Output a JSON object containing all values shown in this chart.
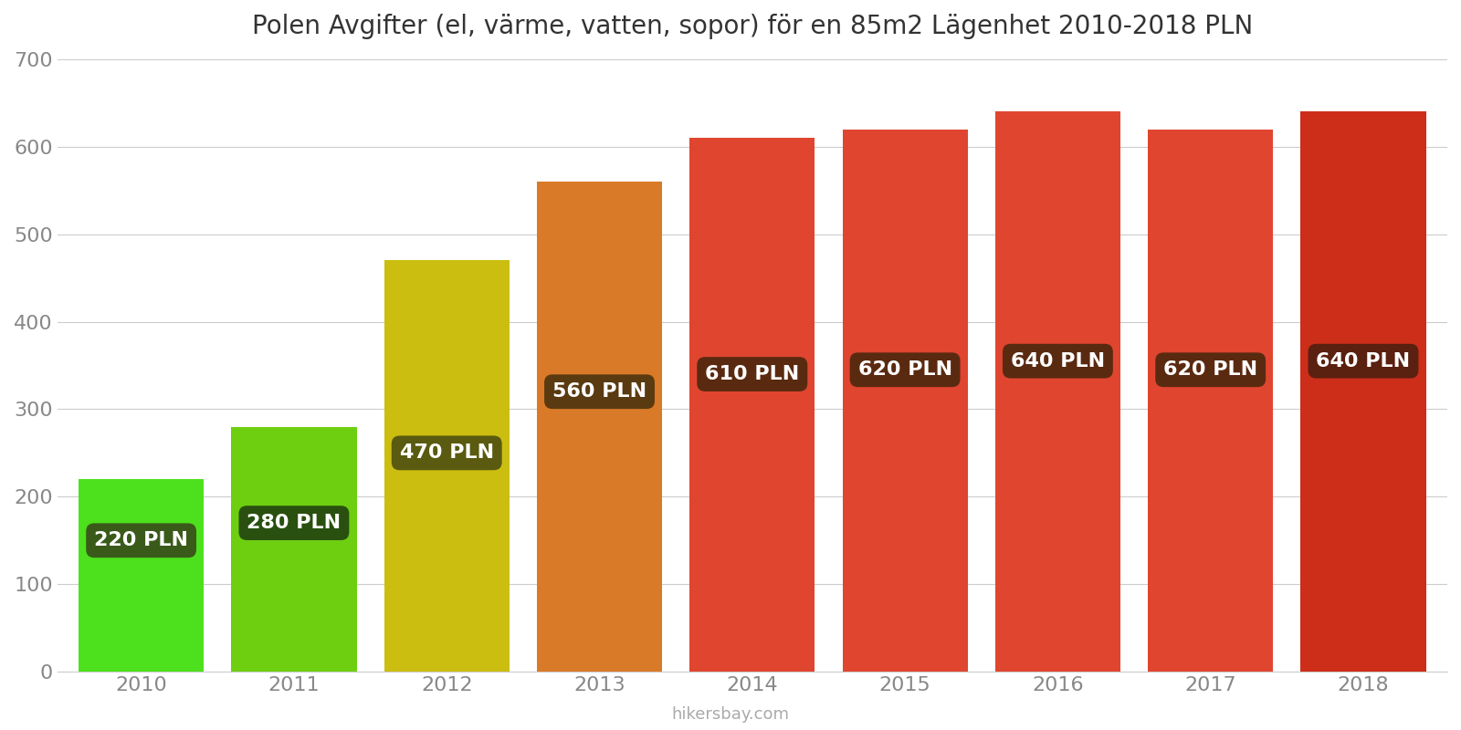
{
  "title": "Polen Avgifter (el, värme, vatten, sopor) för en 85m2 Lägenhet 2010-2018 PLN",
  "years": [
    2010,
    2011,
    2012,
    2013,
    2014,
    2015,
    2016,
    2017,
    2018
  ],
  "values": [
    220,
    280,
    470,
    560,
    610,
    620,
    640,
    620,
    640
  ],
  "bar_colors": [
    "#4de01c",
    "#6ecf10",
    "#cbbe10",
    "#d97a28",
    "#e04530",
    "#e04530",
    "#e04530",
    "#e04530",
    "#cc2e1a"
  ],
  "label_bg_colors": [
    "#3a5a1a",
    "#2a5010",
    "#5a5a10",
    "#5a3a10",
    "#5a2a10",
    "#5a2a10",
    "#5a2a10",
    "#5a2a10",
    "#5a2010"
  ],
  "labels": [
    "220 PLN",
    "280 PLN",
    "470 PLN",
    "560 PLN",
    "610 PLN",
    "620 PLN",
    "640 PLN",
    "620 PLN",
    "640 PLN"
  ],
  "label_text_color": "#ffffff",
  "label_y_values": [
    150,
    170,
    250,
    320,
    340,
    345,
    355,
    345,
    355
  ],
  "ylim": [
    0,
    700
  ],
  "yticks": [
    0,
    100,
    200,
    300,
    400,
    500,
    600,
    700
  ],
  "background_color": "#ffffff",
  "grid_color": "#cccccc",
  "title_fontsize": 20,
  "tick_fontsize": 16,
  "label_fontsize": 16,
  "watermark": "hikersbay.com",
  "bar_width": 0.82
}
